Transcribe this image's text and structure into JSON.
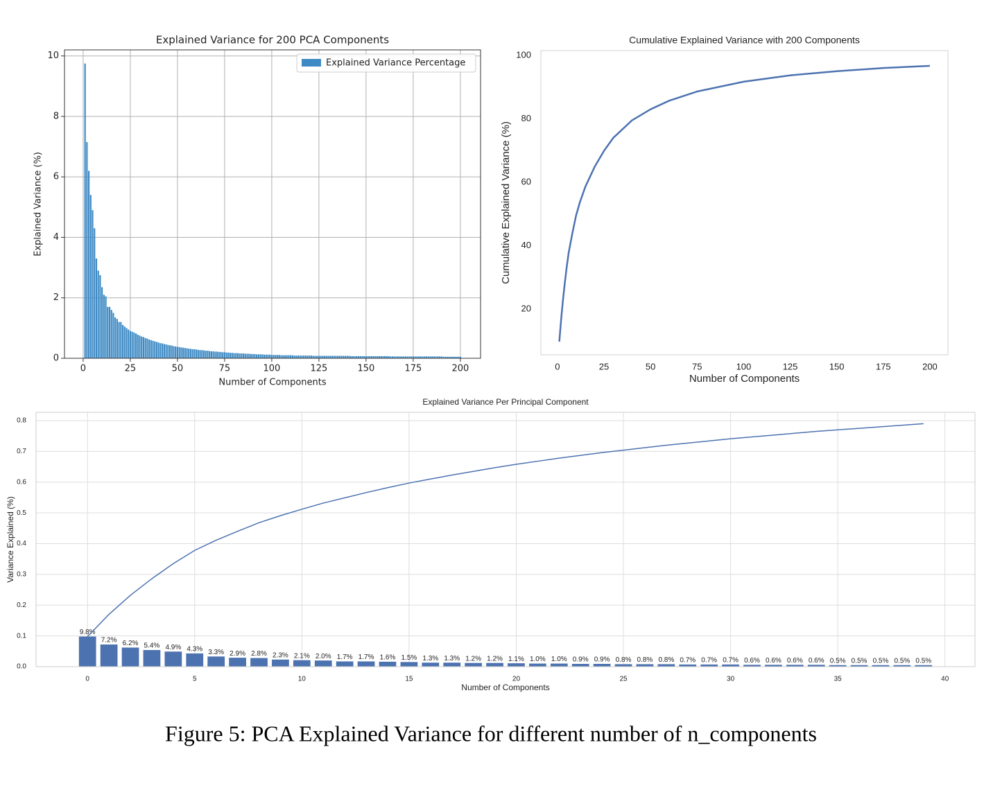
{
  "caption": "Figure 5: PCA Explained Variance for different number of n_components",
  "chart_data": [
    {
      "type": "bar",
      "title": "Explained Variance for 200 PCA Components",
      "xlabel": "Number of Components",
      "ylabel": "Explained Variance (%)",
      "x": [
        1,
        2,
        3,
        4,
        5,
        6,
        7,
        8,
        9,
        10,
        11,
        12,
        13,
        14,
        15,
        16,
        17,
        18,
        19,
        20,
        21,
        22,
        23,
        24,
        25,
        26,
        27,
        28,
        29,
        30,
        31,
        32,
        33,
        34,
        35,
        36,
        37,
        38,
        39,
        40,
        41,
        42,
        43,
        44,
        45,
        46,
        47,
        48,
        49,
        50,
        51,
        52,
        53,
        54,
        55,
        56,
        57,
        58,
        59,
        60,
        61,
        62,
        63,
        64,
        65,
        66,
        67,
        68,
        69,
        70,
        71,
        72,
        73,
        74,
        75,
        76,
        77,
        78,
        79,
        80,
        81,
        82,
        83,
        84,
        85,
        86,
        87,
        88,
        89,
        90,
        91,
        92,
        93,
        94,
        95,
        96,
        97,
        98,
        99,
        100,
        101,
        102,
        103,
        104,
        105,
        106,
        107,
        108,
        109,
        110,
        111,
        112,
        113,
        114,
        115,
        116,
        117,
        118,
        119,
        120,
        121,
        122,
        123,
        124,
        125,
        126,
        127,
        128,
        129,
        130,
        131,
        132,
        133,
        134,
        135,
        136,
        137,
        138,
        139,
        140,
        141,
        142,
        143,
        144,
        145,
        146,
        147,
        148,
        149,
        150,
        151,
        152,
        153,
        154,
        155,
        156,
        157,
        158,
        159,
        160,
        161,
        162,
        163,
        164,
        165,
        166,
        167,
        168,
        169,
        170,
        171,
        172,
        173,
        174,
        175,
        176,
        177,
        178,
        179,
        180,
        181,
        182,
        183,
        184,
        185,
        186,
        187,
        188,
        189,
        190,
        191,
        192,
        193,
        194,
        195,
        196,
        197,
        198,
        199,
        200
      ],
      "series": [
        {
          "name": "Explained Variance Percentage",
          "color": "#3e8ac4",
          "values": [
            9.75,
            7.15,
            6.2,
            5.4,
            4.9,
            4.3,
            3.3,
            2.9,
            2.75,
            2.35,
            2.1,
            2.05,
            1.7,
            1.7,
            1.6,
            1.5,
            1.35,
            1.3,
            1.2,
            1.2,
            1.1,
            1.05,
            1.0,
            0.95,
            0.9,
            0.88,
            0.85,
            0.82,
            0.78,
            0.75,
            0.72,
            0.7,
            0.67,
            0.65,
            0.62,
            0.6,
            0.58,
            0.56,
            0.54,
            0.52,
            0.5,
            0.49,
            0.47,
            0.46,
            0.44,
            0.43,
            0.42,
            0.4,
            0.39,
            0.38,
            0.37,
            0.36,
            0.35,
            0.34,
            0.33,
            0.32,
            0.31,
            0.3,
            0.3,
            0.29,
            0.28,
            0.27,
            0.27,
            0.26,
            0.25,
            0.25,
            0.24,
            0.23,
            0.23,
            0.22,
            0.22,
            0.21,
            0.21,
            0.2,
            0.2,
            0.19,
            0.19,
            0.18,
            0.18,
            0.17,
            0.17,
            0.17,
            0.16,
            0.16,
            0.16,
            0.15,
            0.15,
            0.15,
            0.14,
            0.14,
            0.14,
            0.13,
            0.13,
            0.13,
            0.13,
            0.12,
            0.12,
            0.12,
            0.12,
            0.11,
            0.11,
            0.11,
            0.11,
            0.11,
            0.1,
            0.1,
            0.1,
            0.1,
            0.1,
            0.1,
            0.1,
            0.09,
            0.09,
            0.09,
            0.09,
            0.09,
            0.09,
            0.09,
            0.09,
            0.09,
            0.09,
            0.08,
            0.08,
            0.08,
            0.08,
            0.08,
            0.08,
            0.08,
            0.08,
            0.08,
            0.08,
            0.08,
            0.08,
            0.08,
            0.08,
            0.08,
            0.08,
            0.08,
            0.08,
            0.08,
            0.08,
            0.07,
            0.07,
            0.07,
            0.07,
            0.07,
            0.07,
            0.07,
            0.07,
            0.07,
            0.07,
            0.07,
            0.07,
            0.07,
            0.07,
            0.07,
            0.07,
            0.07,
            0.07,
            0.07,
            0.07,
            0.07,
            0.06,
            0.06,
            0.06,
            0.06,
            0.06,
            0.06,
            0.06,
            0.06,
            0.06,
            0.06,
            0.06,
            0.06,
            0.06,
            0.06,
            0.06,
            0.06,
            0.06,
            0.06,
            0.06,
            0.06,
            0.06,
            0.06,
            0.06,
            0.06,
            0.06,
            0.06,
            0.06,
            0.06,
            0.05,
            0.05,
            0.05,
            0.05,
            0.05,
            0.05,
            0.05,
            0.05,
            0.05,
            0.05
          ]
        }
      ],
      "xlim": [
        -9.9,
        210.7
      ],
      "xticks": [
        0,
        25,
        50,
        75,
        100,
        125,
        150,
        175,
        200
      ],
      "ylim": [
        0,
        10.2
      ],
      "yticks": [
        0,
        2,
        4,
        6,
        8,
        10
      ],
      "grid": true,
      "legend": "upper right"
    },
    {
      "type": "line",
      "title": "Cumulative Explained Variance with 200 Components",
      "xlabel": "Number of Components",
      "ylabel": "Cumulative Explained Variance (%)",
      "x": [
        1,
        2,
        3,
        4,
        5,
        6,
        8,
        10,
        12,
        15,
        20,
        25,
        30,
        40,
        50,
        60,
        75,
        100,
        125,
        150,
        175,
        200
      ],
      "series": [
        {
          "color": "#4c72b0",
          "values": [
            9.75,
            16.9,
            23.1,
            28.5,
            33.4,
            37.7,
            43.9,
            49.5,
            53.6,
            58.6,
            64.9,
            69.9,
            74.0,
            79.5,
            83.0,
            85.7,
            88.6,
            91.7,
            93.7,
            95.0,
            96.0,
            96.7
          ]
        }
      ],
      "xlim": [
        -8.9,
        209.7
      ],
      "xticks": [
        0,
        25,
        50,
        75,
        100,
        125,
        150,
        175,
        200
      ],
      "ylim": [
        5.6,
        101.5
      ],
      "yticks": [
        20,
        40,
        60,
        80,
        100
      ],
      "grid": false
    },
    {
      "type": "bar",
      "title": "Explained Variance Per Principal Component",
      "xlabel": "Number of Components",
      "ylabel": "Variance Explained (%)",
      "x": [
        0,
        1,
        2,
        3,
        4,
        5,
        6,
        7,
        8,
        9,
        10,
        11,
        12,
        13,
        14,
        15,
        16,
        17,
        18,
        19,
        20,
        21,
        22,
        23,
        24,
        25,
        26,
        27,
        28,
        29,
        30,
        31,
        32,
        33,
        34,
        35,
        36,
        37,
        38,
        39
      ],
      "series": [
        {
          "type": "bar",
          "color": "#4c72b0",
          "values": [
            0.098,
            0.072,
            0.062,
            0.054,
            0.049,
            0.043,
            0.033,
            0.029,
            0.028,
            0.023,
            0.021,
            0.02,
            0.017,
            0.017,
            0.016,
            0.015,
            0.013,
            0.013,
            0.012,
            0.012,
            0.011,
            0.01,
            0.01,
            0.009,
            0.009,
            0.008,
            0.008,
            0.008,
            0.007,
            0.007,
            0.007,
            0.006,
            0.006,
            0.006,
            0.006,
            0.005,
            0.005,
            0.005,
            0.005,
            0.005
          ],
          "value_labels": [
            "9.8%",
            "7.2%",
            "6.2%",
            "5.4%",
            "4.9%",
            "4.3%",
            "3.3%",
            "2.9%",
            "2.8%",
            "2.3%",
            "2.1%",
            "2.0%",
            "1.7%",
            "1.7%",
            "1.6%",
            "1.5%",
            "1.3%",
            "1.3%",
            "1.2%",
            "1.2%",
            "1.1%",
            "1.0%",
            "1.0%",
            "0.9%",
            "0.9%",
            "0.8%",
            "0.8%",
            "0.8%",
            "0.7%",
            "0.7%",
            "0.7%",
            "0.6%",
            "0.6%",
            "0.6%",
            "0.6%",
            "0.5%",
            "0.5%",
            "0.5%",
            "0.5%",
            "0.5%"
          ]
        },
        {
          "type": "line",
          "color": "#4c72b0",
          "values": [
            0.098,
            0.17,
            0.232,
            0.286,
            0.335,
            0.378,
            0.411,
            0.44,
            0.468,
            0.491,
            0.512,
            0.532,
            0.549,
            0.566,
            0.582,
            0.597,
            0.61,
            0.623,
            0.635,
            0.647,
            0.658,
            0.668,
            0.678,
            0.687,
            0.696,
            0.704,
            0.712,
            0.72,
            0.727,
            0.734,
            0.741,
            0.747,
            0.753,
            0.759,
            0.765,
            0.77,
            0.775,
            0.78,
            0.785,
            0.79
          ]
        }
      ],
      "xlim": [
        -2.4,
        41.4
      ],
      "xticks": [
        0,
        5,
        10,
        15,
        20,
        25,
        30,
        35,
        40
      ],
      "ylim": [
        0,
        0.827
      ],
      "yticks": [
        {
          "value": 0,
          "label": "0.0"
        },
        0.1,
        0.2,
        0.3,
        0.4,
        0.5,
        0.6,
        0.7,
        0.8
      ],
      "grid": true
    }
  ]
}
